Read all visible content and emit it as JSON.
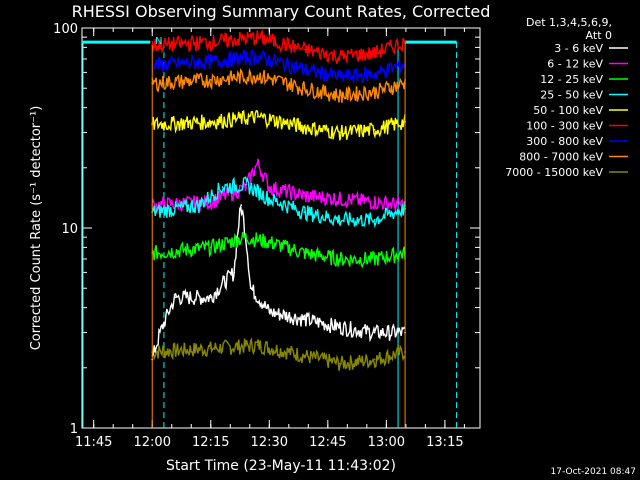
{
  "chart_data": {
    "type": "line",
    "title": "RHESSI Observing Summary Count Rates, Corrected",
    "xlabel": "Start Time (23-May-11 11:43:02)",
    "ylabel": "Corrected Count Rate (s⁻¹ detector⁻¹)",
    "ylim": [
      1,
      100
    ],
    "y_scale": "log",
    "x_range_minutes": [
      11.7,
      13.4
    ],
    "x_ticks": [
      "11:45",
      "12:00",
      "12:15",
      "12:30",
      "12:45",
      "13:00",
      "13:15"
    ],
    "y_ticks": [
      "1",
      "10",
      "100"
    ],
    "legend_header": [
      "Det 1,3,4,5,6,9,",
      "Att 0"
    ],
    "legend_position": "top-right",
    "timestamp": "17-Oct-2021 08:47",
    "annotation_n": "N",
    "series": [
      {
        "name": "3 - 6 keV",
        "color": "#ffffff",
        "x": [
          12.0,
          12.1,
          12.25,
          12.35,
          12.38,
          12.42,
          12.5,
          12.65,
          12.8,
          12.95,
          13.08
        ],
        "y": [
          2.2,
          4.5,
          4.5,
          6.0,
          13.0,
          5.0,
          3.8,
          3.5,
          3.2,
          3.0,
          3.0
        ]
      },
      {
        "name": "6 - 12 keV",
        "color": "#ff00ff",
        "x": [
          12.0,
          12.25,
          12.4,
          12.45,
          12.5,
          12.65,
          12.8,
          12.95,
          13.08
        ],
        "y": [
          13.0,
          13.5,
          16.0,
          21.0,
          16.0,
          14.5,
          14.0,
          13.5,
          13.0
        ]
      },
      {
        "name": "12 - 25 keV",
        "color": "#00ff00",
        "x": [
          12.0,
          12.25,
          12.4,
          12.5,
          12.65,
          12.8,
          12.95,
          13.08
        ],
        "y": [
          7.5,
          8.0,
          9.0,
          8.5,
          7.5,
          7.0,
          7.0,
          7.5
        ]
      },
      {
        "name": "25 - 50 keV",
        "color": "#00ffff",
        "x": [
          12.0,
          12.2,
          12.3,
          12.4,
          12.5,
          12.65,
          12.8,
          12.95,
          13.08
        ],
        "y": [
          12.0,
          13.0,
          16.0,
          16.5,
          14.0,
          12.0,
          11.0,
          11.0,
          12.5
        ]
      },
      {
        "name": "50 - 100 keV",
        "color": "#ffff00",
        "x": [
          12.0,
          12.25,
          12.45,
          12.65,
          12.8,
          12.95,
          13.08
        ],
        "y": [
          33.0,
          34.0,
          36.0,
          32.0,
          30.0,
          31.0,
          34.0
        ]
      },
      {
        "name": "100 - 300 keV",
        "color": "#ff0000",
        "x": [
          12.0,
          12.25,
          12.45,
          12.65,
          12.8,
          12.95,
          13.08
        ],
        "y": [
          82.0,
          85.0,
          90.0,
          78.0,
          72.0,
          75.0,
          85.0
        ]
      },
      {
        "name": "300 - 800 keV",
        "color": "#0000ff",
        "x": [
          12.0,
          12.25,
          12.45,
          12.65,
          12.8,
          12.95,
          13.08
        ],
        "y": [
          65.0,
          68.0,
          72.0,
          62.0,
          57.0,
          59.0,
          66.0
        ]
      },
      {
        "name": "800 - 7000 keV",
        "color": "#ff8800",
        "x": [
          12.0,
          12.25,
          12.45,
          12.65,
          12.8,
          12.95,
          13.08
        ],
        "y": [
          53.0,
          55.0,
          58.0,
          50.0,
          46.0,
          48.0,
          53.0
        ]
      },
      {
        "name": "7000 - 15000 keV",
        "color": "#888800",
        "x": [
          12.0,
          12.25,
          12.45,
          12.65,
          12.8,
          12.95,
          13.08
        ],
        "y": [
          2.4,
          2.5,
          2.6,
          2.3,
          2.1,
          2.2,
          2.4
        ]
      }
    ],
    "attenuator_line": {
      "color": "#00ffff",
      "level": 85
    }
  }
}
